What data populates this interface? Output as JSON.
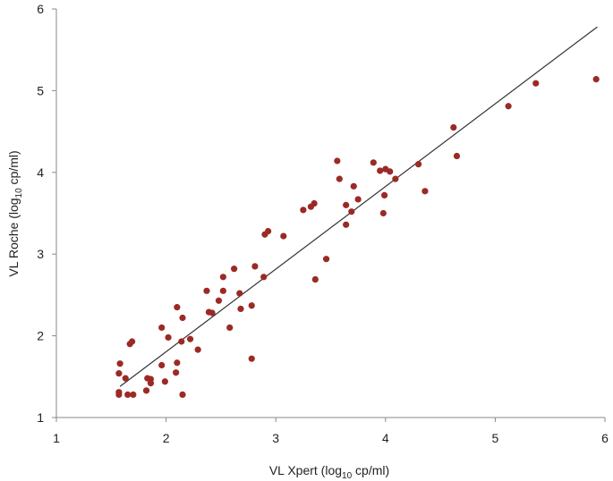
{
  "chart_data": {
    "type": "scatter",
    "title": "",
    "xlabel": {
      "pre": "VL Xpert (log",
      "sub": "10",
      "post": " cp/ml)"
    },
    "ylabel": {
      "pre": "VL Roche (log",
      "sub": "10",
      "post": " cp/ml)"
    },
    "xlim": [
      1,
      6
    ],
    "ylim": [
      1,
      6
    ],
    "xticks": [
      "1",
      "2",
      "3",
      "4",
      "5",
      "6"
    ],
    "yticks": [
      "1",
      "2",
      "3",
      "4",
      "5",
      "6"
    ],
    "grid": false,
    "legend": "none",
    "colors": {
      "points": "#9b2a26",
      "line": "#333333",
      "axis": "#888888"
    },
    "points": [
      [
        1.57,
        1.28
      ],
      [
        1.57,
        1.31
      ],
      [
        1.57,
        1.54
      ],
      [
        1.58,
        1.66
      ],
      [
        1.63,
        1.48
      ],
      [
        1.65,
        1.28
      ],
      [
        1.67,
        1.9
      ],
      [
        1.69,
        1.93
      ],
      [
        1.7,
        1.28
      ],
      [
        1.82,
        1.33
      ],
      [
        1.83,
        1.48
      ],
      [
        1.86,
        1.42
      ],
      [
        1.86,
        1.47
      ],
      [
        1.96,
        1.64
      ],
      [
        1.96,
        2.1
      ],
      [
        1.99,
        1.44
      ],
      [
        2.02,
        1.98
      ],
      [
        2.09,
        1.55
      ],
      [
        2.1,
        1.67
      ],
      [
        2.1,
        2.35
      ],
      [
        2.14,
        1.93
      ],
      [
        2.15,
        2.22
      ],
      [
        2.15,
        1.28
      ],
      [
        2.22,
        1.96
      ],
      [
        2.29,
        1.83
      ],
      [
        2.37,
        2.55
      ],
      [
        2.39,
        2.29
      ],
      [
        2.42,
        2.28
      ],
      [
        2.48,
        2.43
      ],
      [
        2.52,
        2.55
      ],
      [
        2.52,
        2.72
      ],
      [
        2.58,
        2.1
      ],
      [
        2.62,
        2.82
      ],
      [
        2.67,
        2.52
      ],
      [
        2.68,
        2.33
      ],
      [
        2.78,
        1.72
      ],
      [
        2.78,
        2.37
      ],
      [
        2.81,
        2.85
      ],
      [
        2.89,
        2.72
      ],
      [
        2.9,
        3.24
      ],
      [
        2.93,
        3.28
      ],
      [
        3.07,
        3.22
      ],
      [
        3.25,
        3.54
      ],
      [
        3.32,
        3.58
      ],
      [
        3.35,
        3.62
      ],
      [
        3.36,
        2.69
      ],
      [
        3.46,
        2.94
      ],
      [
        3.56,
        4.14
      ],
      [
        3.58,
        3.92
      ],
      [
        3.64,
        3.36
      ],
      [
        3.64,
        3.6
      ],
      [
        3.69,
        3.52
      ],
      [
        3.71,
        3.83
      ],
      [
        3.75,
        3.67
      ],
      [
        3.89,
        4.12
      ],
      [
        3.95,
        4.02
      ],
      [
        3.98,
        3.5
      ],
      [
        3.99,
        3.72
      ],
      [
        4.0,
        4.04
      ],
      [
        4.04,
        4.01
      ],
      [
        4.09,
        3.92
      ],
      [
        4.3,
        4.1
      ],
      [
        4.36,
        3.77
      ],
      [
        4.62,
        4.55
      ],
      [
        4.65,
        4.2
      ],
      [
        5.12,
        4.81
      ],
      [
        5.37,
        5.09
      ],
      [
        5.92,
        5.14
      ]
    ],
    "regression_line": {
      "x": [
        1.58,
        5.93
      ],
      "y": [
        1.38,
        5.78
      ]
    }
  }
}
